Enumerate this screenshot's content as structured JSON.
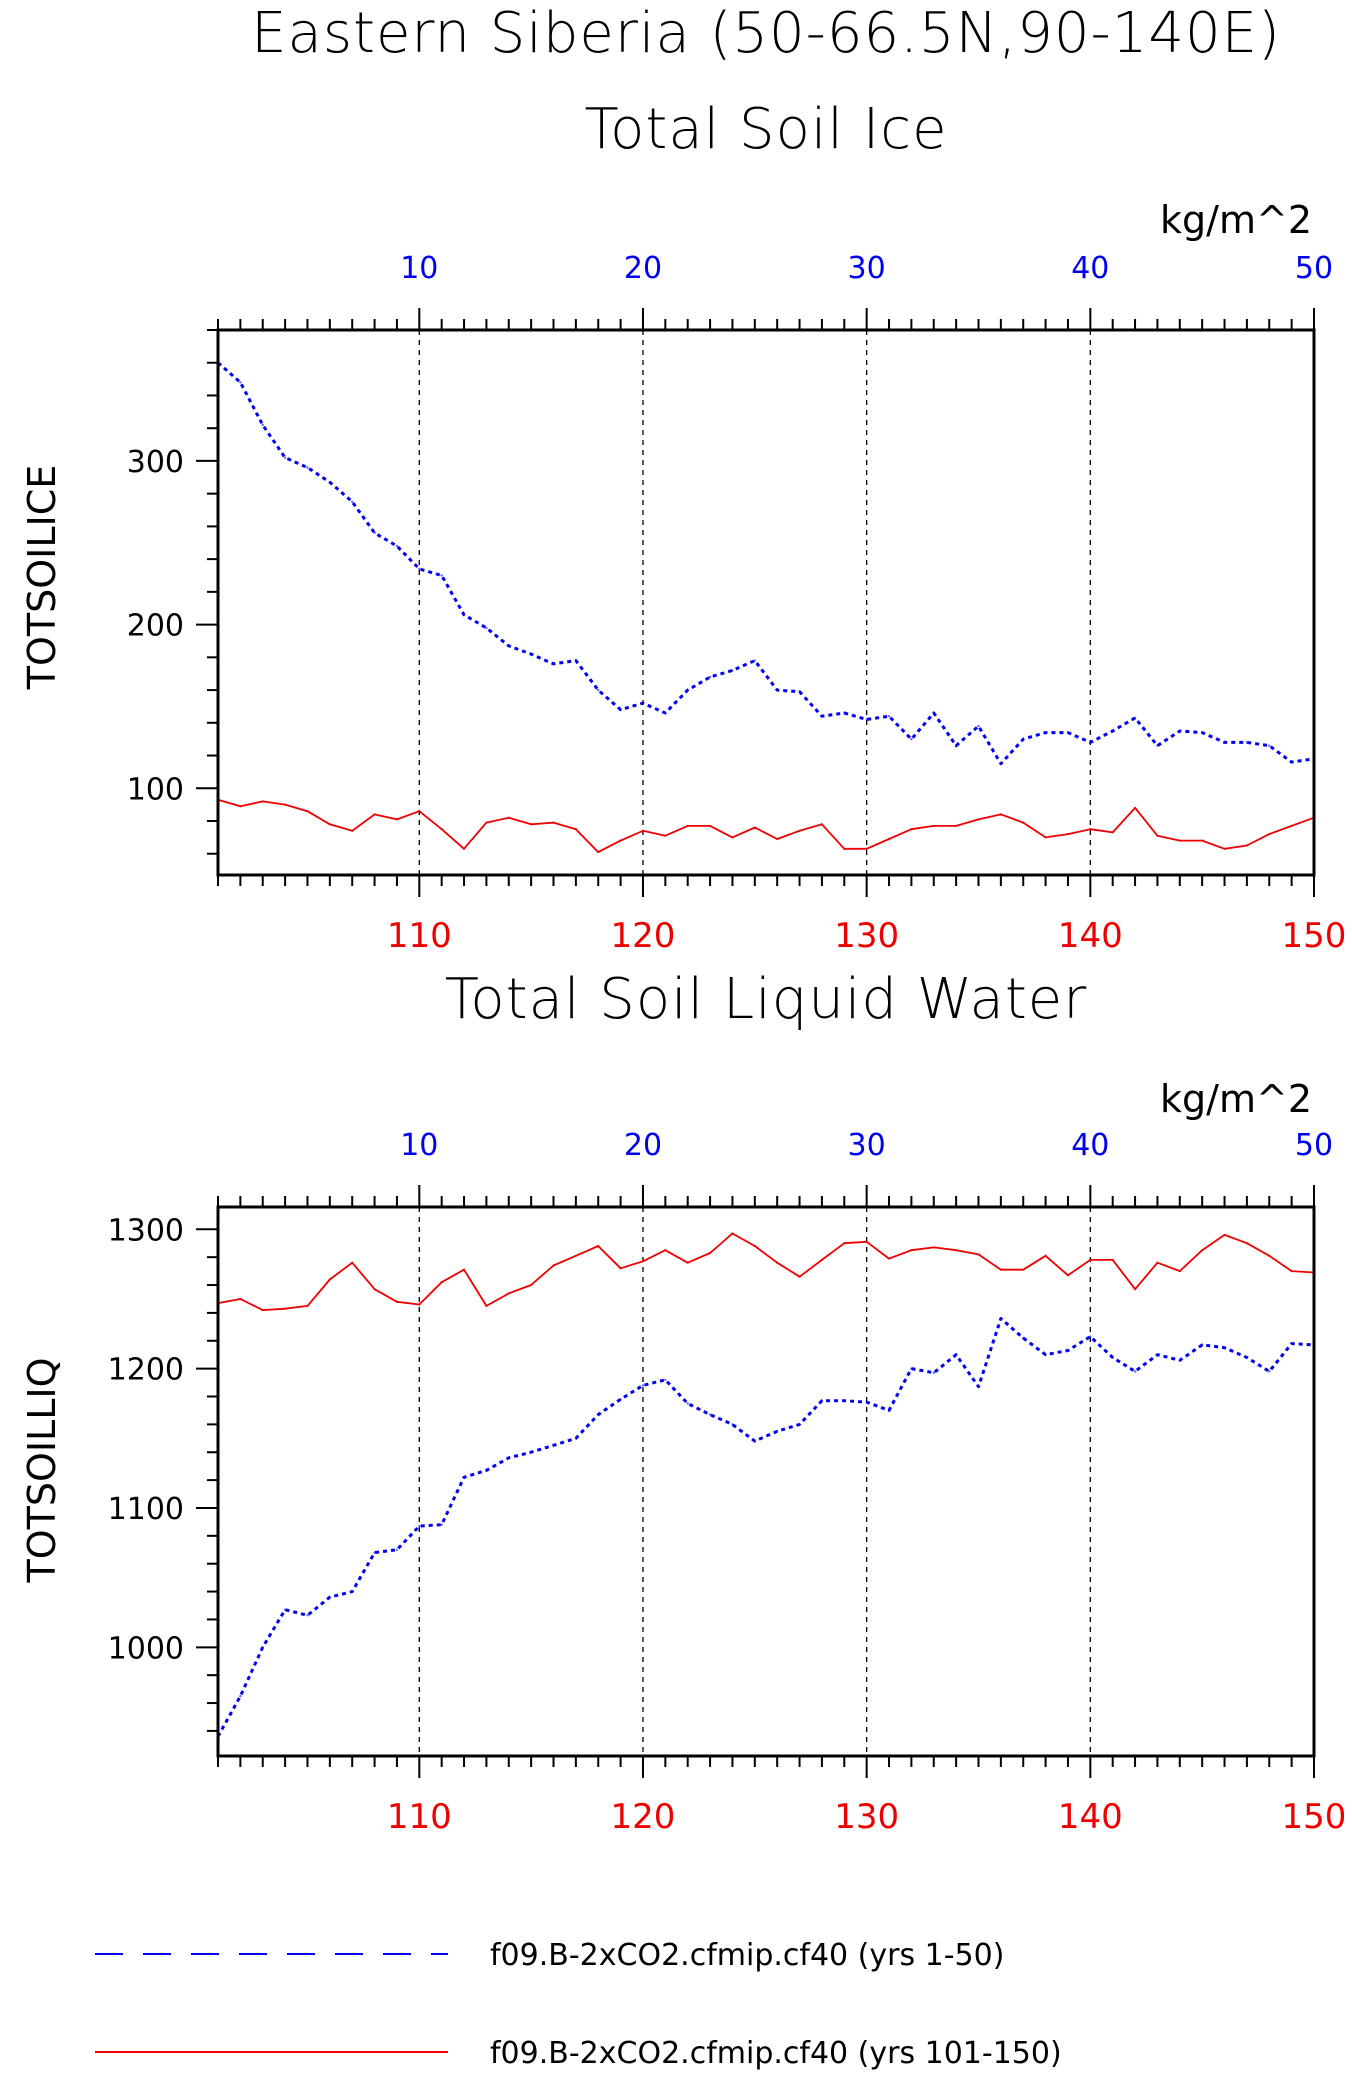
{
  "title": "Eastern Siberia (50-66.5N,90-140E)",
  "colors": {
    "series_blue": "#0000ee",
    "series_red": "#ee0000",
    "frame": "#000000",
    "grid": "#000000"
  },
  "legend": [
    {
      "label": "f09.B-2xCO2.cfmip.cf40 (yrs 1-50)",
      "style": "dashed",
      "color": "#0000ee"
    },
    {
      "label": "f09.B-2xCO2.cfmip.cf40 (yrs 101-150)",
      "style": "solid",
      "color": "#ee0000"
    }
  ],
  "chart_data": [
    {
      "type": "line",
      "title": "Total Soil Ice",
      "ylabel": "TOTSOILICE",
      "unit_label": "kg/m^2",
      "ylim": [
        47,
        380
      ],
      "yticks": [
        100,
        200,
        300
      ],
      "x_top": {
        "range": [
          1,
          50
        ],
        "ticks": [
          10,
          20,
          30,
          40,
          50
        ],
        "color": "#0000ee"
      },
      "x_bottom": {
        "range": [
          101,
          150
        ],
        "ticks": [
          110,
          120,
          130,
          140,
          150
        ],
        "color": "#ee0000"
      },
      "grid": "vertical dashed at labeled ticks",
      "series": [
        {
          "legend_index": 0,
          "axis": "top",
          "style": "dashed",
          "x": [
            1,
            2,
            3,
            4,
            5,
            6,
            7,
            8,
            9,
            10,
            11,
            12,
            13,
            14,
            15,
            16,
            17,
            18,
            19,
            20,
            21,
            22,
            23,
            24,
            25,
            26,
            27,
            28,
            29,
            30,
            31,
            32,
            33,
            34,
            35,
            36,
            37,
            38,
            39,
            40,
            41,
            42,
            43,
            44,
            45,
            46,
            47,
            48,
            49,
            50
          ],
          "values": [
            360,
            348,
            322,
            302,
            296,
            287,
            275,
            256,
            248,
            234,
            230,
            206,
            198,
            187,
            182,
            176,
            178,
            160,
            148,
            152,
            146,
            160,
            168,
            172,
            178,
            160,
            159,
            144,
            146,
            142,
            144,
            130,
            146,
            126,
            138,
            115,
            130,
            134,
            134,
            128,
            135,
            143,
            126,
            135,
            134,
            128,
            128,
            126,
            116,
            118
          ]
        },
        {
          "legend_index": 1,
          "axis": "bottom",
          "style": "solid",
          "x": [
            101,
            102,
            103,
            104,
            105,
            106,
            107,
            108,
            109,
            110,
            111,
            112,
            113,
            114,
            115,
            116,
            117,
            118,
            119,
            120,
            121,
            122,
            123,
            124,
            125,
            126,
            127,
            128,
            129,
            130,
            131,
            132,
            133,
            134,
            135,
            136,
            137,
            138,
            139,
            140,
            141,
            142,
            143,
            144,
            145,
            146,
            147,
            148,
            149,
            150
          ],
          "values": [
            93,
            89,
            92,
            90,
            86,
            78,
            74,
            84,
            81,
            86,
            75,
            63,
            79,
            82,
            78,
            79,
            75,
            61,
            68,
            74,
            71,
            77,
            77,
            70,
            76,
            69,
            74,
            78,
            63,
            63,
            69,
            75,
            77,
            77,
            81,
            84,
            79,
            70,
            72,
            75,
            73,
            88,
            71,
            68,
            68,
            63,
            65,
            72,
            77,
            82
          ]
        }
      ]
    },
    {
      "type": "line",
      "title": "Total Soil Liquid Water",
      "ylabel": "TOTSOILLIQ",
      "unit_label": "kg/m^2",
      "ylim": [
        922,
        1316
      ],
      "yticks": [
        1000,
        1100,
        1200,
        1300
      ],
      "x_top": {
        "range": [
          1,
          50
        ],
        "ticks": [
          10,
          20,
          30,
          40,
          50
        ],
        "color": "#0000ee"
      },
      "x_bottom": {
        "range": [
          101,
          150
        ],
        "ticks": [
          110,
          120,
          130,
          140,
          150
        ],
        "color": "#ee0000"
      },
      "grid": "vertical dashed at labeled ticks",
      "series": [
        {
          "legend_index": 0,
          "axis": "top",
          "style": "dashed",
          "x": [
            1,
            2,
            3,
            4,
            5,
            6,
            7,
            8,
            9,
            10,
            11,
            12,
            13,
            14,
            15,
            16,
            17,
            18,
            19,
            20,
            21,
            22,
            23,
            24,
            25,
            26,
            27,
            28,
            29,
            30,
            31,
            32,
            33,
            34,
            35,
            36,
            37,
            38,
            39,
            40,
            41,
            42,
            43,
            44,
            45,
            46,
            47,
            48,
            49,
            50
          ],
          "values": [
            936,
            965,
            1000,
            1027,
            1023,
            1036,
            1040,
            1068,
            1070,
            1087,
            1088,
            1122,
            1127,
            1136,
            1140,
            1145,
            1150,
            1167,
            1178,
            1188,
            1192,
            1175,
            1167,
            1160,
            1148,
            1155,
            1160,
            1177,
            1177,
            1176,
            1170,
            1200,
            1197,
            1210,
            1187,
            1236,
            1222,
            1210,
            1213,
            1223,
            1208,
            1198,
            1210,
            1206,
            1217,
            1215,
            1208,
            1198,
            1218,
            1217
          ]
        },
        {
          "legend_index": 1,
          "axis": "bottom",
          "style": "solid",
          "x": [
            101,
            102,
            103,
            104,
            105,
            106,
            107,
            108,
            109,
            110,
            111,
            112,
            113,
            114,
            115,
            116,
            117,
            118,
            119,
            120,
            121,
            122,
            123,
            124,
            125,
            126,
            127,
            128,
            129,
            130,
            131,
            132,
            133,
            134,
            135,
            136,
            137,
            138,
            139,
            140,
            141,
            142,
            143,
            144,
            145,
            146,
            147,
            148,
            149,
            150
          ],
          "values": [
            1247,
            1250,
            1242,
            1243,
            1245,
            1264,
            1276,
            1257,
            1248,
            1246,
            1262,
            1271,
            1245,
            1254,
            1260,
            1274,
            1281,
            1288,
            1272,
            1277,
            1285,
            1276,
            1283,
            1297,
            1288,
            1276,
            1266,
            1278,
            1290,
            1291,
            1279,
            1285,
            1287,
            1285,
            1282,
            1271,
            1271,
            1281,
            1267,
            1278,
            1278,
            1257,
            1276,
            1270,
            1285,
            1296,
            1290,
            1281,
            1270,
            1269
          ]
        }
      ]
    }
  ]
}
